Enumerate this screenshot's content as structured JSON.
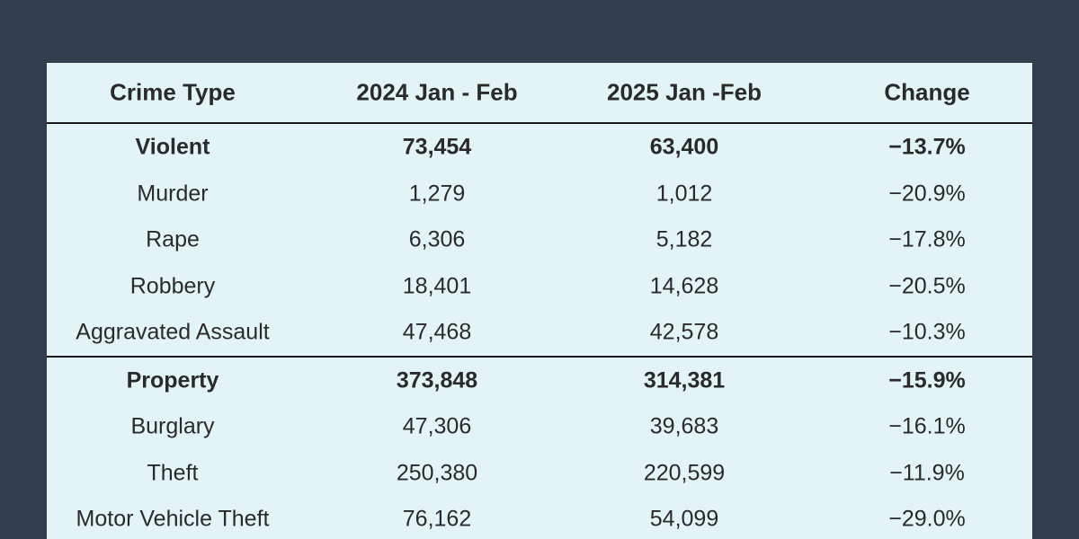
{
  "table": {
    "header": [
      "Crime Type",
      "2024 Jan - Feb",
      "2025 Jan -Feb",
      "Change"
    ],
    "sections": [
      {
        "total": [
          "Violent",
          "73,454",
          "63,400",
          "−13.7%"
        ],
        "rows": [
          [
            "Murder",
            "1,279",
            "1,012",
            "−20.9%"
          ],
          [
            "Rape",
            "6,306",
            "5,182",
            "−17.8%"
          ],
          [
            "Robbery",
            "18,401",
            "14,628",
            "−20.5%"
          ],
          [
            "Aggravated Assault",
            "47,468",
            "42,578",
            "−10.3%"
          ]
        ]
      },
      {
        "total": [
          "Property",
          "373,848",
          "314,381",
          "−15.9%"
        ],
        "rows": [
          [
            "Burglary",
            "47,306",
            "39,683",
            "−16.1%"
          ],
          [
            "Theft",
            "250,380",
            "220,599",
            "−11.9%"
          ],
          [
            "Motor Vehicle Theft",
            "76,162",
            "54,099",
            "−29.0%"
          ]
        ]
      }
    ]
  }
}
